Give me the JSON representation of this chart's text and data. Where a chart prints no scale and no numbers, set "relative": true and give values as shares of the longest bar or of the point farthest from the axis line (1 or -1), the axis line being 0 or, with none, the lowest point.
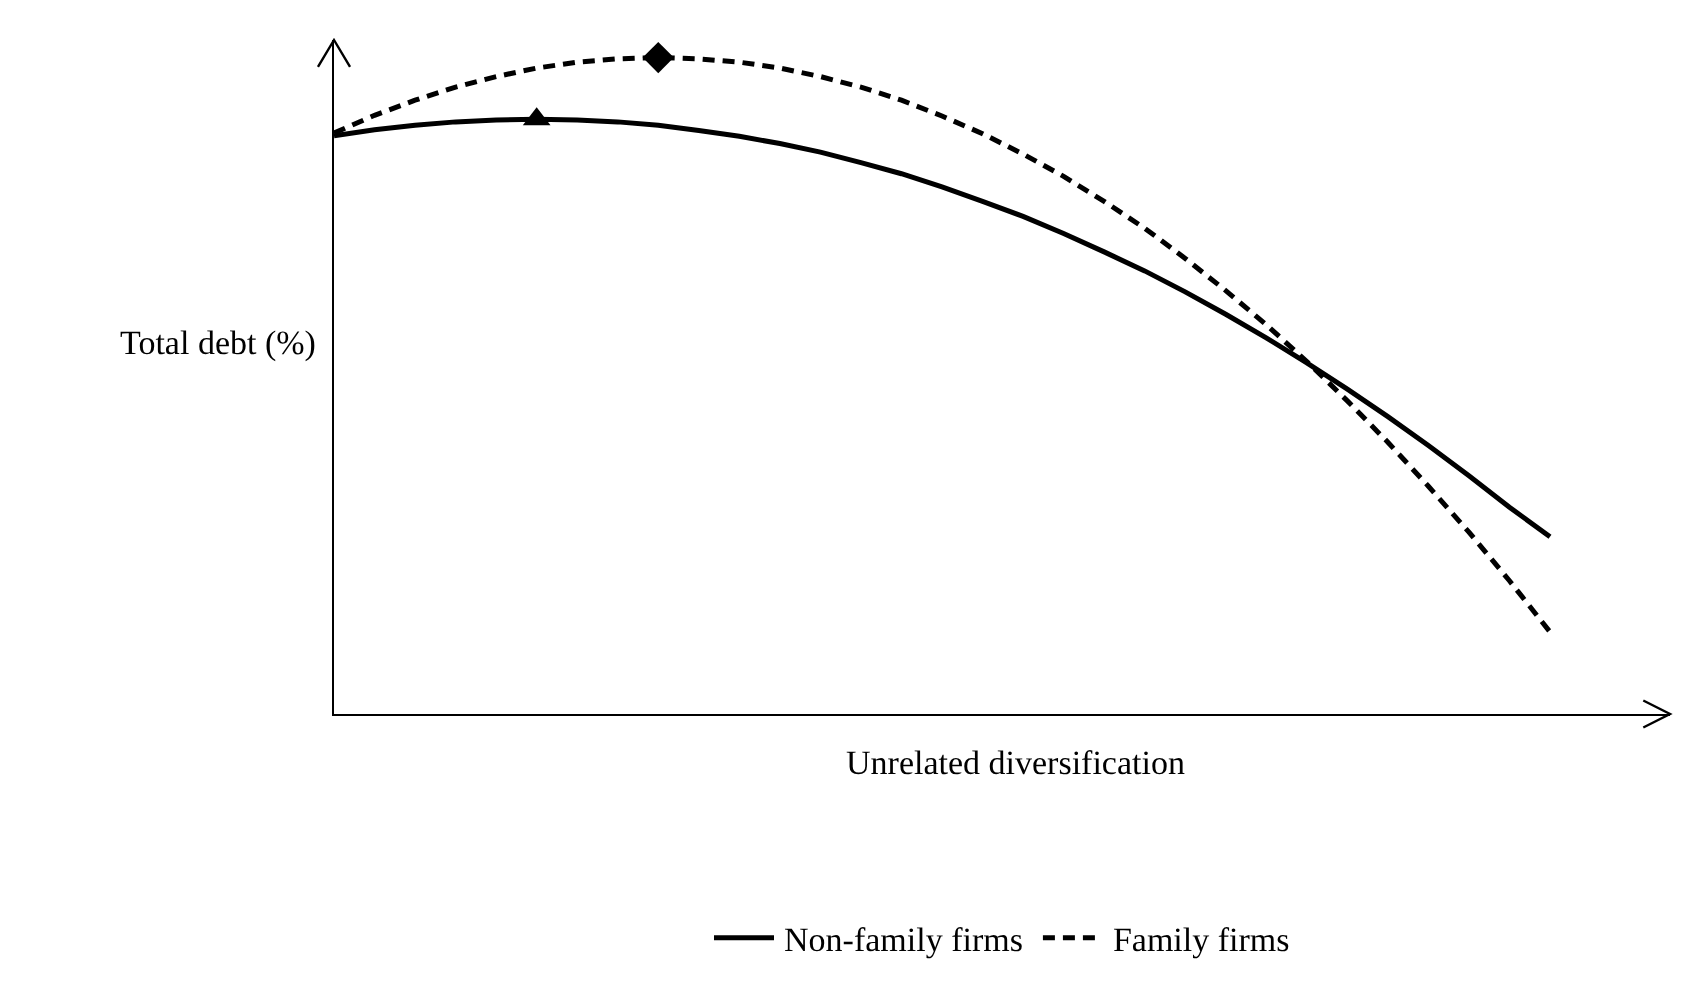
{
  "chart_data": {
    "type": "line",
    "relative": true,
    "xlabel": "Unrelated diversification",
    "ylabel": "Total debt (%)",
    "legend": "bottom",
    "categories": [
      null,
      null,
      null,
      null,
      null,
      null,
      null,
      null,
      null,
      null,
      null,
      null,
      null,
      null,
      null,
      null,
      null,
      null,
      null,
      null,
      null,
      null,
      null,
      null,
      null,
      null,
      null,
      null,
      null,
      null,
      null
    ],
    "series": [
      {
        "name": "Non-family firms",
        "color": "#000000",
        "line_style": "solid",
        "values": [
          0.881,
          0.89,
          0.897,
          0.902,
          0.905,
          0.906,
          0.905,
          0.902,
          0.897,
          0.889,
          0.88,
          0.869,
          0.856,
          0.84,
          0.823,
          0.803,
          0.781,
          0.758,
          0.732,
          0.704,
          0.675,
          0.643,
          0.609,
          0.573,
          0.535,
          0.495,
          0.453,
          0.409,
          0.363,
          0.315,
          0.27
        ]
      },
      {
        "name": "Family firms",
        "color": "#000000",
        "line_style": "dashed",
        "values": [
          0.885,
          0.912,
          0.935,
          0.955,
          0.971,
          0.984,
          0.993,
          0.998,
          1.0,
          0.998,
          0.993,
          0.984,
          0.971,
          0.955,
          0.935,
          0.911,
          0.884,
          0.853,
          0.819,
          0.781,
          0.74,
          0.694,
          0.645,
          0.593,
          0.537,
          0.477,
          0.414,
          0.347,
          0.277,
          0.203,
          0.125
        ]
      }
    ]
  }
}
